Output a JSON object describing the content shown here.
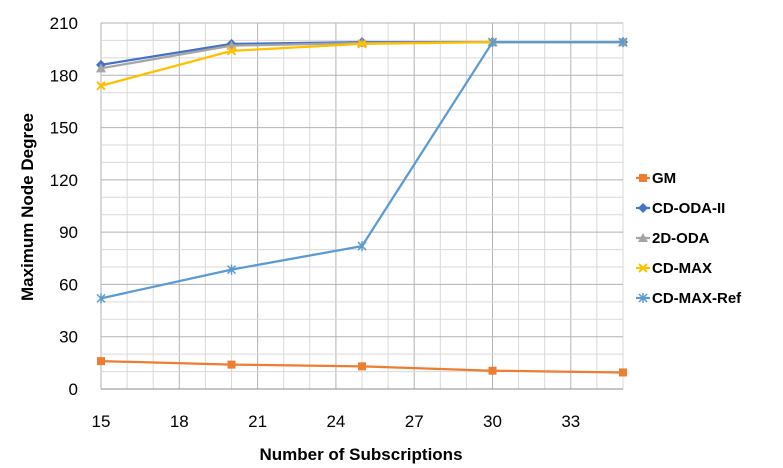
{
  "chart_data": {
    "type": "line",
    "title": "",
    "xlabel": "Number of Subscriptions",
    "ylabel": "Maximum Node Degree",
    "xlim": [
      15,
      35
    ],
    "ylim": [
      0,
      210
    ],
    "x_ticks": [
      "15",
      "18",
      "21",
      "24",
      "27",
      "30",
      "33"
    ],
    "y_ticks": [
      "0",
      "30",
      "60",
      "90",
      "120",
      "150",
      "180",
      "210"
    ],
    "grid": true,
    "legend_position": "right",
    "series": [
      {
        "name": "GM",
        "color": "#ED7D31",
        "marker": "square",
        "x": [
          15,
          20,
          25,
          30,
          35
        ],
        "y": [
          16,
          14,
          13,
          10.5,
          9.5
        ]
      },
      {
        "name": "CD-ODA-II",
        "color": "#4472C4",
        "marker": "diamond",
        "x": [
          15,
          20,
          25,
          30,
          35
        ],
        "y": [
          186,
          198,
          199,
          199,
          199
        ]
      },
      {
        "name": "2D-ODA",
        "color": "#A5A5A5",
        "marker": "triangle",
        "x": [
          15,
          20,
          25,
          30,
          35
        ],
        "y": [
          184,
          197,
          198.5,
          199,
          199
        ]
      },
      {
        "name": "CD-MAX",
        "color": "#FFC000",
        "marker": "x",
        "x": [
          15,
          20,
          25,
          30,
          35
        ],
        "y": [
          174,
          194,
          198,
          199,
          199
        ]
      },
      {
        "name": "CD-MAX-Ref",
        "color": "#5B9BD5",
        "marker": "star",
        "x": [
          15,
          20,
          25,
          30,
          35
        ],
        "y": [
          52,
          68.5,
          82,
          199,
          199
        ]
      }
    ]
  }
}
